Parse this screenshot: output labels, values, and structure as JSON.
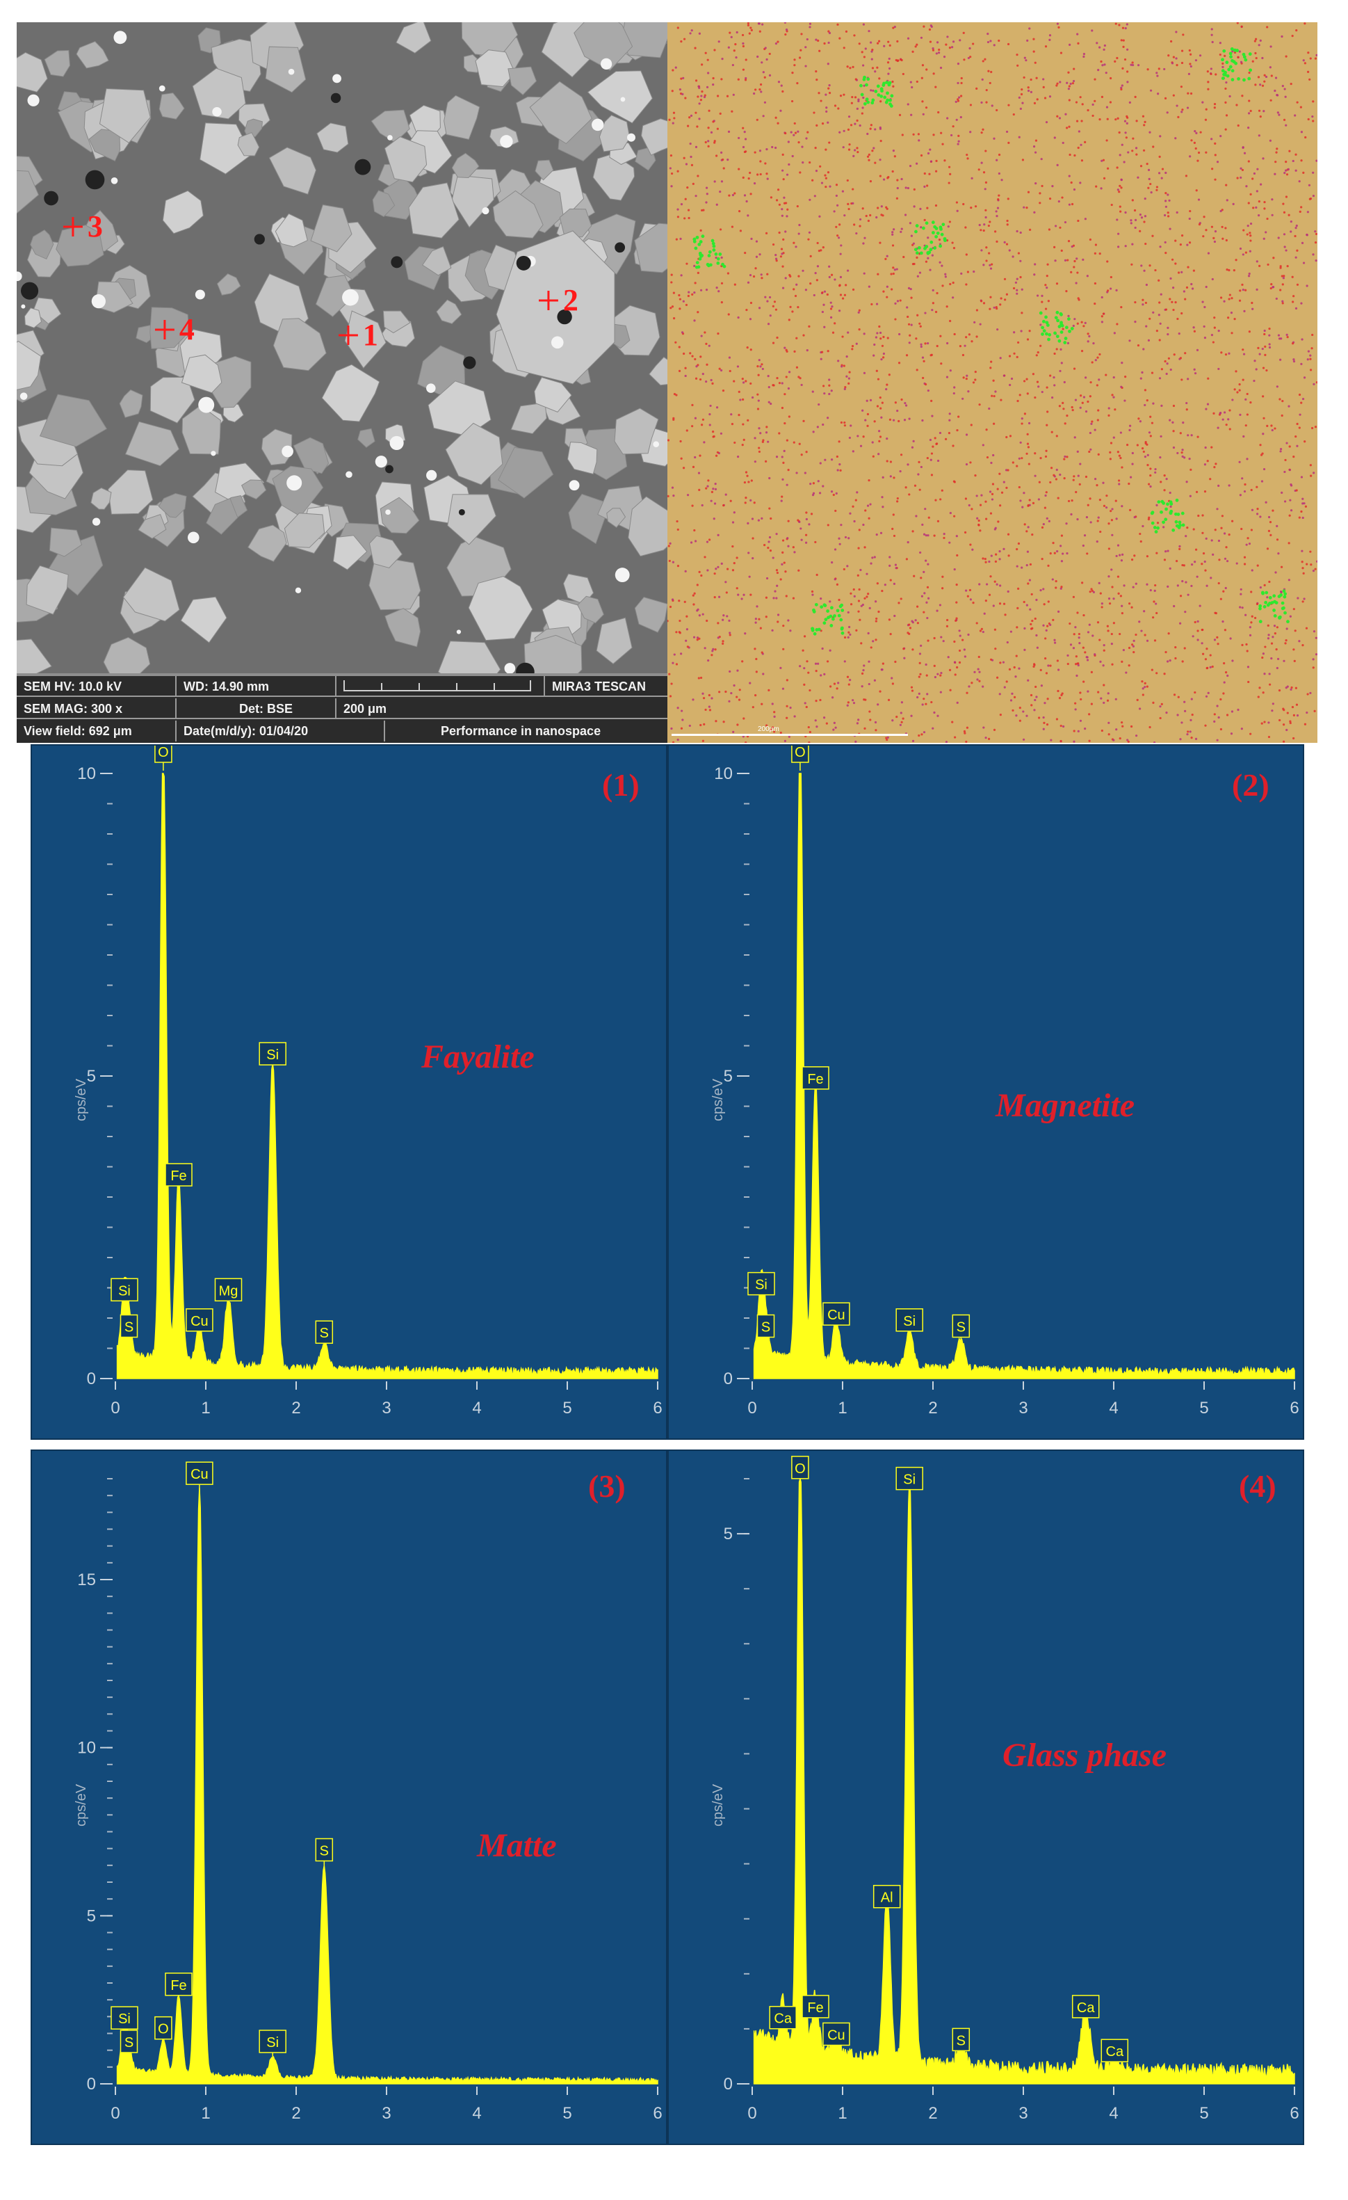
{
  "sem": {
    "markers": [
      {
        "number": "3"
      },
      {
        "number": "4"
      },
      {
        "number": "1"
      },
      {
        "number": "2"
      }
    ],
    "info_bar": {
      "hv": "SEM HV: 10.0 kV",
      "wd": "WD: 14.90 mm",
      "brand": "MIRA3 TESCAN",
      "mag": "SEM MAG: 300 x",
      "det": "Det: BSE",
      "scale": "200 μm",
      "view_field": "View field: 692 μm",
      "date": "Date(m/d/y): 01/04/20",
      "slogan": "Performance in nanospace"
    }
  },
  "eds_map": {
    "scalebar_label": "200μm",
    "colors": {
      "base": "#d4b06a",
      "red": "#e0302a",
      "magenta": "#b8327a",
      "green": "#2ee82e"
    }
  },
  "spectrum_style": {
    "background": "#134a7a",
    "trace_color": "#ffff1a",
    "label_color": "#e0202a"
  },
  "chart_data": [
    {
      "type": "line",
      "tag": "(1)",
      "phase": "Fayalite",
      "ylabel": "cps/eV",
      "xlim": [
        0,
        6
      ],
      "ylim": [
        0,
        10
      ],
      "x_ticks": [
        "0",
        "1",
        "2",
        "3",
        "4",
        "5",
        "6"
      ],
      "y_ticks": [
        {
          "label": "0",
          "value": 0
        },
        {
          "label": "5",
          "value": 5
        },
        {
          "label": "10",
          "value": 10
        }
      ],
      "peaks": [
        {
          "element": "Si",
          "energy": 0.1,
          "cps": 1.1
        },
        {
          "element": "S",
          "energy": 0.15,
          "cps": 0.5
        },
        {
          "element": "O",
          "energy": 0.53,
          "cps": 10.1
        },
        {
          "element": "Fe",
          "energy": 0.7,
          "cps": 3.0
        },
        {
          "element": "Cu",
          "energy": 0.93,
          "cps": 0.6
        },
        {
          "element": "Mg",
          "energy": 1.25,
          "cps": 1.1
        },
        {
          "element": "Si",
          "energy": 1.74,
          "cps": 5.0
        },
        {
          "element": "S",
          "energy": 2.31,
          "cps": 0.4
        }
      ]
    },
    {
      "type": "line",
      "tag": "(2)",
      "phase": "Magnetite",
      "ylabel": "cps/eV",
      "xlim": [
        0,
        6
      ],
      "ylim": [
        0,
        10
      ],
      "x_ticks": [
        "0",
        "1",
        "2",
        "3",
        "4",
        "5",
        "6"
      ],
      "y_ticks": [
        {
          "label": "0",
          "value": 0
        },
        {
          "label": "5",
          "value": 5
        },
        {
          "label": "10",
          "value": 10
        }
      ],
      "peaks": [
        {
          "element": "Si",
          "energy": 0.1,
          "cps": 1.2
        },
        {
          "element": "S",
          "energy": 0.15,
          "cps": 0.5
        },
        {
          "element": "O",
          "energy": 0.53,
          "cps": 10.1
        },
        {
          "element": "Fe",
          "energy": 0.7,
          "cps": 4.6
        },
        {
          "element": "Cu",
          "energy": 0.93,
          "cps": 0.7
        },
        {
          "element": "Si",
          "energy": 1.74,
          "cps": 0.6
        },
        {
          "element": "S",
          "energy": 2.31,
          "cps": 0.5
        }
      ]
    },
    {
      "type": "line",
      "tag": "(3)",
      "phase": "Matte",
      "ylabel": "cps/eV",
      "xlim": [
        0,
        6
      ],
      "ylim": [
        0,
        18
      ],
      "x_ticks": [
        "0",
        "1",
        "2",
        "3",
        "4",
        "5",
        "6"
      ],
      "y_ticks": [
        {
          "label": "0",
          "value": 0
        },
        {
          "label": "5",
          "value": 5
        },
        {
          "label": "10",
          "value": 10
        },
        {
          "label": "15",
          "value": 15
        }
      ],
      "peaks": [
        {
          "element": "Si",
          "energy": 0.1,
          "cps": 1.3
        },
        {
          "element": "S",
          "energy": 0.15,
          "cps": 0.6
        },
        {
          "element": "O",
          "energy": 0.53,
          "cps": 1.0
        },
        {
          "element": "Fe",
          "energy": 0.7,
          "cps": 2.3
        },
        {
          "element": "Cu",
          "energy": 0.93,
          "cps": 17.5
        },
        {
          "element": "Si",
          "energy": 1.74,
          "cps": 0.6
        },
        {
          "element": "S",
          "energy": 2.31,
          "cps": 6.3
        }
      ]
    },
    {
      "type": "line",
      "tag": "(4)",
      "phase": "Glass phase",
      "ylabel": "cps/eV",
      "xlim": [
        0,
        6
      ],
      "ylim": [
        0,
        5.5
      ],
      "x_ticks": [
        "0",
        "1",
        "2",
        "3",
        "4",
        "5",
        "6"
      ],
      "y_ticks": [
        {
          "label": "0",
          "value": 0
        },
        {
          "label": "5",
          "value": 5
        }
      ],
      "peaks": [
        {
          "element": "Ca",
          "energy": 0.34,
          "cps": 0.4
        },
        {
          "element": "O",
          "energy": 0.53,
          "cps": 5.4
        },
        {
          "element": "Fe",
          "energy": 0.7,
          "cps": 0.5
        },
        {
          "element": "Cu",
          "energy": 0.93,
          "cps": 0.25
        },
        {
          "element": "Al",
          "energy": 1.49,
          "cps": 1.5
        },
        {
          "element": "Si",
          "energy": 1.74,
          "cps": 5.3
        },
        {
          "element": "S",
          "energy": 2.31,
          "cps": 0.2
        },
        {
          "element": "Ca",
          "energy": 3.69,
          "cps": 0.5
        },
        {
          "element": "Ca",
          "energy": 4.01,
          "cps": 0.1
        }
      ]
    }
  ]
}
